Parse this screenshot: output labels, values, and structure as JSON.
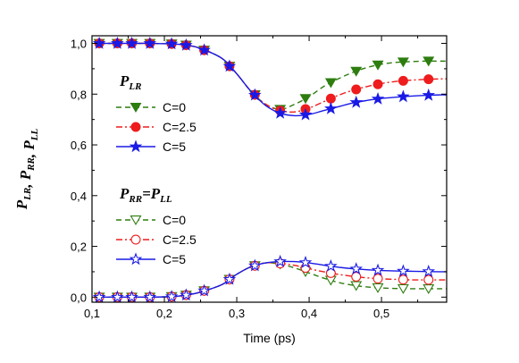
{
  "chart_data": {
    "type": "line",
    "xlabel": "Time  (ps)",
    "ylabel_parts": [
      {
        "main": "P",
        "sub": "LR"
      },
      {
        "sep": ",  "
      },
      {
        "main": "P",
        "sub": "RR"
      },
      {
        "sep": ",  "
      },
      {
        "main": "P",
        "sub": "LL"
      }
    ],
    "xlim": [
      0.1,
      0.59
    ],
    "ylim": [
      -0.02,
      1.03
    ],
    "xticks": [
      0.1,
      0.2,
      0.3,
      0.4,
      0.5
    ],
    "xtick_labels": [
      "0,1",
      "0,2",
      "0,3",
      "0,4",
      "0,5"
    ],
    "yticks": [
      0.0,
      0.2,
      0.4,
      0.6,
      0.8,
      1.0
    ],
    "ytick_labels": [
      "0,0",
      "0,2",
      "0,4",
      "0,6",
      "0,8",
      "1,0"
    ],
    "grid": false,
    "legend_groups": [
      {
        "title_main": "P",
        "title_sub": "LR",
        "title_rest": "",
        "series": [
          0,
          1,
          2
        ]
      },
      {
        "title_main": "P",
        "title_sub": "RR",
        "title_rest": "=",
        "title_main2": "P",
        "title_sub2": "LL",
        "series": [
          3,
          4,
          5
        ]
      }
    ],
    "series": [
      {
        "name": "C=0",
        "color": "#2e7d0f",
        "dash": "6,4",
        "marker": "triangle-down",
        "filled": true,
        "x": [
          0.11,
          0.14,
          0.16,
          0.18,
          0.21,
          0.23,
          0.25,
          0.28,
          0.3,
          0.32,
          0.34,
          0.36,
          0.38,
          0.4,
          0.42,
          0.44,
          0.46,
          0.48,
          0.5,
          0.52,
          0.54,
          0.56,
          0.58,
          0.59
        ],
        "y": [
          1.0,
          1.0,
          1.0,
          1.0,
          0.998,
          0.993,
          0.98,
          0.94,
          0.88,
          0.81,
          0.76,
          0.74,
          0.76,
          0.79,
          0.83,
          0.86,
          0.885,
          0.905,
          0.918,
          0.925,
          0.928,
          0.93,
          0.93,
          0.93
        ],
        "marker_x": [
          0.11,
          0.135,
          0.155,
          0.18,
          0.21,
          0.23,
          0.255,
          0.29,
          0.325,
          0.36,
          0.395,
          0.43,
          0.465,
          0.495,
          0.53,
          0.565
        ]
      },
      {
        "name": "C=2.5",
        "color": "#ee1c1c",
        "dash": "7,3,2,3",
        "marker": "circle",
        "filled": true,
        "x": [
          0.11,
          0.14,
          0.16,
          0.18,
          0.21,
          0.23,
          0.25,
          0.28,
          0.3,
          0.32,
          0.34,
          0.36,
          0.38,
          0.4,
          0.42,
          0.44,
          0.46,
          0.48,
          0.5,
          0.52,
          0.54,
          0.56,
          0.58,
          0.59
        ],
        "y": [
          1.0,
          1.0,
          1.0,
          1.0,
          0.998,
          0.993,
          0.98,
          0.94,
          0.88,
          0.81,
          0.76,
          0.735,
          0.73,
          0.745,
          0.77,
          0.795,
          0.815,
          0.83,
          0.842,
          0.85,
          0.855,
          0.858,
          0.86,
          0.86
        ],
        "marker_x": [
          0.11,
          0.135,
          0.155,
          0.18,
          0.21,
          0.23,
          0.255,
          0.29,
          0.325,
          0.36,
          0.395,
          0.43,
          0.465,
          0.495,
          0.53,
          0.565
        ]
      },
      {
        "name": "C=5",
        "color": "#1a1ae6",
        "dash": "",
        "marker": "star",
        "filled": true,
        "x": [
          0.11,
          0.14,
          0.16,
          0.18,
          0.21,
          0.23,
          0.25,
          0.28,
          0.3,
          0.32,
          0.34,
          0.36,
          0.38,
          0.4,
          0.42,
          0.44,
          0.46,
          0.48,
          0.5,
          0.52,
          0.54,
          0.56,
          0.58,
          0.59
        ],
        "y": [
          1.0,
          1.0,
          1.0,
          1.0,
          0.998,
          0.993,
          0.98,
          0.94,
          0.88,
          0.81,
          0.755,
          0.725,
          0.715,
          0.72,
          0.735,
          0.75,
          0.765,
          0.775,
          0.783,
          0.788,
          0.792,
          0.795,
          0.797,
          0.797
        ],
        "marker_x": [
          0.11,
          0.135,
          0.155,
          0.18,
          0.21,
          0.23,
          0.255,
          0.29,
          0.325,
          0.36,
          0.395,
          0.43,
          0.465,
          0.495,
          0.53,
          0.565
        ]
      },
      {
        "name": "C=0",
        "color": "#2e7d0f",
        "dash": "6,4",
        "marker": "triangle-down",
        "filled": false,
        "x": [
          0.11,
          0.14,
          0.16,
          0.18,
          0.21,
          0.23,
          0.25,
          0.28,
          0.3,
          0.32,
          0.34,
          0.36,
          0.38,
          0.4,
          0.42,
          0.44,
          0.46,
          0.48,
          0.5,
          0.52,
          0.54,
          0.56,
          0.58,
          0.59
        ],
        "y": [
          0.0,
          0.0,
          0.0,
          0.0,
          0.002,
          0.008,
          0.02,
          0.05,
          0.09,
          0.12,
          0.135,
          0.13,
          0.115,
          0.095,
          0.075,
          0.058,
          0.047,
          0.04,
          0.036,
          0.034,
          0.033,
          0.033,
          0.033,
          0.033
        ],
        "marker_x": [
          0.11,
          0.135,
          0.155,
          0.18,
          0.21,
          0.23,
          0.255,
          0.29,
          0.325,
          0.36,
          0.395,
          0.43,
          0.465,
          0.495,
          0.53,
          0.565
        ]
      },
      {
        "name": "C=2.5",
        "color": "#ee1c1c",
        "dash": "7,3,2,3",
        "marker": "circle",
        "filled": false,
        "x": [
          0.11,
          0.14,
          0.16,
          0.18,
          0.21,
          0.23,
          0.25,
          0.28,
          0.3,
          0.32,
          0.34,
          0.36,
          0.38,
          0.4,
          0.42,
          0.44,
          0.46,
          0.48,
          0.5,
          0.52,
          0.54,
          0.56,
          0.58,
          0.59
        ],
        "y": [
          0.0,
          0.0,
          0.0,
          0.0,
          0.002,
          0.008,
          0.02,
          0.05,
          0.09,
          0.12,
          0.135,
          0.133,
          0.125,
          0.112,
          0.1,
          0.09,
          0.082,
          0.076,
          0.072,
          0.07,
          0.068,
          0.068,
          0.068,
          0.068
        ],
        "marker_x": [
          0.11,
          0.135,
          0.155,
          0.18,
          0.21,
          0.23,
          0.255,
          0.29,
          0.325,
          0.36,
          0.395,
          0.43,
          0.465,
          0.495,
          0.53,
          0.565
        ]
      },
      {
        "name": "C=5",
        "color": "#1a1ae6",
        "dash": "",
        "marker": "star",
        "filled": false,
        "x": [
          0.11,
          0.14,
          0.16,
          0.18,
          0.21,
          0.23,
          0.25,
          0.28,
          0.3,
          0.32,
          0.34,
          0.36,
          0.38,
          0.4,
          0.42,
          0.44,
          0.46,
          0.48,
          0.5,
          0.52,
          0.54,
          0.56,
          0.58,
          0.59
        ],
        "y": [
          0.0,
          0.0,
          0.0,
          0.0,
          0.002,
          0.008,
          0.02,
          0.05,
          0.09,
          0.12,
          0.135,
          0.14,
          0.14,
          0.135,
          0.126,
          0.118,
          0.112,
          0.108,
          0.105,
          0.103,
          0.102,
          0.101,
          0.1,
          0.1
        ],
        "marker_x": [
          0.11,
          0.135,
          0.155,
          0.18,
          0.21,
          0.23,
          0.255,
          0.29,
          0.325,
          0.36,
          0.395,
          0.43,
          0.465,
          0.495,
          0.53,
          0.565
        ]
      }
    ]
  }
}
